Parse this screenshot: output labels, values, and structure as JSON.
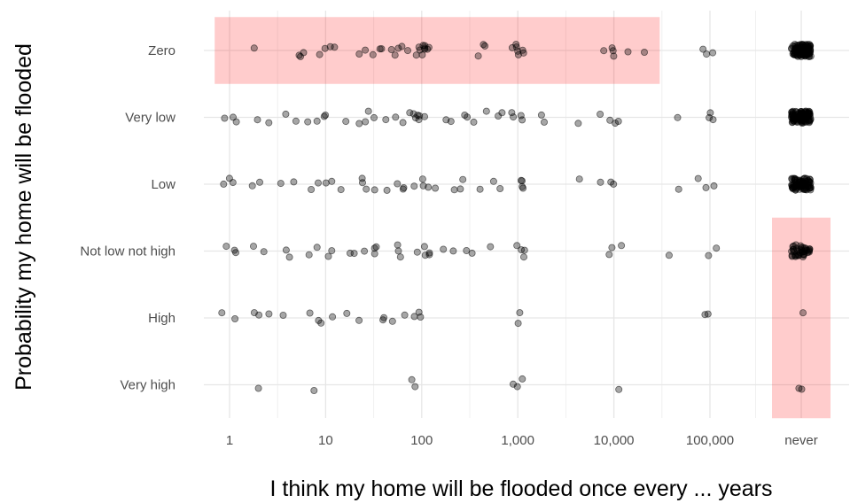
{
  "chart_data": {
    "type": "scatter",
    "title": "",
    "xlabel": "I think my home will be flooded once every ... years",
    "ylabel": "Probability my home will be flooded",
    "x_scale": "log10 with extra 'never' category",
    "x_ticks": [
      1,
      10,
      100,
      1000,
      10000,
      100000,
      "never"
    ],
    "x_tick_labels": [
      "1",
      "10",
      "100",
      "1,000",
      "10,000",
      "100,000",
      "never"
    ],
    "y_categories": [
      "Zero",
      "Very low",
      "Low",
      "Not low not high",
      "High",
      "Very high"
    ],
    "grid": true,
    "point_color": "#000000",
    "point_alpha": 0.35,
    "highlight_color": "#ff0000",
    "highlight_alpha": 0.2,
    "highlights": [
      {
        "x_range": [
          0.7,
          30000
        ],
        "y_category": "Zero"
      },
      {
        "x_range": [
          "never",
          "never"
        ],
        "y_categories": [
          "Not low not high",
          "High",
          "Very high"
        ]
      }
    ],
    "points": [
      {
        "y": "Zero",
        "x": 1.7
      },
      {
        "y": "Zero",
        "x": 5.2
      },
      {
        "y": "Zero",
        "x": 5.5
      },
      {
        "y": "Zero",
        "x": 6
      },
      {
        "y": "Zero",
        "x": 8
      },
      {
        "y": "Zero",
        "x": 9
      },
      {
        "y": "Zero",
        "x": 10
      },
      {
        "y": "Zero",
        "x": 12
      },
      {
        "y": "Zero",
        "x": 25
      },
      {
        "y": "Zero",
        "x": 27
      },
      {
        "y": "Zero",
        "x": 30
      },
      {
        "y": "Zero",
        "x": 35
      },
      {
        "y": "Zero",
        "x": 40
      },
      {
        "y": "Zero",
        "x": 45
      },
      {
        "y": "Zero",
        "x": 50
      },
      {
        "y": "Zero",
        "x": 55
      },
      {
        "y": "Zero",
        "x": 65
      },
      {
        "y": "Zero",
        "x": 75
      },
      {
        "y": "Zero",
        "x": 80
      },
      {
        "y": "Zero",
        "x": 85
      },
      {
        "y": "Zero",
        "x": 90
      },
      {
        "y": "Zero",
        "x": 95
      },
      {
        "y": "Zero",
        "x": 100
      },
      {
        "y": "Zero",
        "x": 100
      },
      {
        "y": "Zero",
        "x": 100
      },
      {
        "y": "Zero",
        "x": 100
      },
      {
        "y": "Zero",
        "x": 110
      },
      {
        "y": "Zero",
        "x": 120
      },
      {
        "y": "Zero",
        "x": 400
      },
      {
        "y": "Zero",
        "x": 450
      },
      {
        "y": "Zero",
        "x": 500
      },
      {
        "y": "Zero",
        "x": 900
      },
      {
        "y": "Zero",
        "x": 950
      },
      {
        "y": "Zero",
        "x": 1000
      },
      {
        "y": "Zero",
        "x": 1000
      },
      {
        "y": "Zero",
        "x": 1000
      },
      {
        "y": "Zero",
        "x": 1100
      },
      {
        "y": "Zero",
        "x": 1200
      },
      {
        "y": "Zero",
        "x": 8000
      },
      {
        "y": "Zero",
        "x": 9000
      },
      {
        "y": "Zero",
        "x": 10000
      },
      {
        "y": "Zero",
        "x": 11000
      },
      {
        "y": "Zero",
        "x": 12000
      },
      {
        "y": "Zero",
        "x": 25000
      },
      {
        "y": "Zero",
        "x": 80000
      },
      {
        "y": "Zero",
        "x": 95000
      },
      {
        "y": "Zero",
        "x": 100000
      },
      {
        "y": "Very low",
        "x": 0.9
      },
      {
        "y": "Very low",
        "x": 1
      },
      {
        "y": "Very low",
        "x": 1.1
      },
      {
        "y": "Very low",
        "x": 1.9
      },
      {
        "y": "Very low",
        "x": 3
      },
      {
        "y": "Very low",
        "x": 4.5
      },
      {
        "y": "Very low",
        "x": 5
      },
      {
        "y": "Very low",
        "x": 7
      },
      {
        "y": "Very low",
        "x": 9
      },
      {
        "y": "Very low",
        "x": 10
      },
      {
        "y": "Very low",
        "x": 12
      },
      {
        "y": "Very low",
        "x": 15
      },
      {
        "y": "Very low",
        "x": 20
      },
      {
        "y": "Very low",
        "x": 25
      },
      {
        "y": "Very low",
        "x": 30
      },
      {
        "y": "Very low",
        "x": 35
      },
      {
        "y": "Very low",
        "x": 40
      },
      {
        "y": "Very low",
        "x": 50
      },
      {
        "y": "Very low",
        "x": 60
      },
      {
        "y": "Very low",
        "x": 70
      },
      {
        "y": "Very low",
        "x": 80
      },
      {
        "y": "Very low",
        "x": 100
      },
      {
        "y": "Very low",
        "x": 100
      },
      {
        "y": "Very low",
        "x": 100
      },
      {
        "y": "Very low",
        "x": 100
      },
      {
        "y": "Very low",
        "x": 100
      },
      {
        "y": "Very low",
        "x": 150
      },
      {
        "y": "Very low",
        "x": 200
      },
      {
        "y": "Very low",
        "x": 250
      },
      {
        "y": "Very low",
        "x": 300
      },
      {
        "y": "Very low",
        "x": 400
      },
      {
        "y": "Very low",
        "x": 500
      },
      {
        "y": "Very low",
        "x": 600
      },
      {
        "y": "Very low",
        "x": 800
      },
      {
        "y": "Very low",
        "x": 1000
      },
      {
        "y": "Very low",
        "x": 1000
      },
      {
        "y": "Very low",
        "x": 1000
      },
      {
        "y": "Very low",
        "x": 1000
      },
      {
        "y": "Very low",
        "x": 1500
      },
      {
        "y": "Very low",
        "x": 2200
      },
      {
        "y": "Very low",
        "x": 4500
      },
      {
        "y": "Very low",
        "x": 8000
      },
      {
        "y": "Very low",
        "x": 10000
      },
      {
        "y": "Very low",
        "x": 10000
      },
      {
        "y": "Very low",
        "x": 12000
      },
      {
        "y": "Very low",
        "x": 50000
      },
      {
        "y": "Very low",
        "x": 90000
      },
      {
        "y": "Very low",
        "x": 100000
      },
      {
        "y": "Very low",
        "x": 110000
      },
      {
        "y": "Low",
        "x": 0.9
      },
      {
        "y": "Low",
        "x": 1
      },
      {
        "y": "Low",
        "x": 1.1
      },
      {
        "y": "Low",
        "x": 1.6
      },
      {
        "y": "Low",
        "x": 2
      },
      {
        "y": "Low",
        "x": 3.5
      },
      {
        "y": "Low",
        "x": 4.5
      },
      {
        "y": "Low",
        "x": 6
      },
      {
        "y": "Low",
        "x": 8
      },
      {
        "y": "Low",
        "x": 10
      },
      {
        "y": "Low",
        "x": 12
      },
      {
        "y": "Low",
        "x": 15
      },
      {
        "y": "Low",
        "x": 20
      },
      {
        "y": "Low",
        "x": 25
      },
      {
        "y": "Low",
        "x": 30
      },
      {
        "y": "Low",
        "x": 35
      },
      {
        "y": "Low",
        "x": 40
      },
      {
        "y": "Low",
        "x": 50
      },
      {
        "y": "Low",
        "x": 60
      },
      {
        "y": "Low",
        "x": 70
      },
      {
        "y": "Low",
        "x": 100
      },
      {
        "y": "Low",
        "x": 100
      },
      {
        "y": "Low",
        "x": 100
      },
      {
        "y": "Low",
        "x": 100
      },
      {
        "y": "Low",
        "x": 150
      },
      {
        "y": "Low",
        "x": 200
      },
      {
        "y": "Low",
        "x": 250
      },
      {
        "y": "Low",
        "x": 300
      },
      {
        "y": "Low",
        "x": 450
      },
      {
        "y": "Low",
        "x": 500
      },
      {
        "y": "Low",
        "x": 700
      },
      {
        "y": "Low",
        "x": 1000
      },
      {
        "y": "Low",
        "x": 1000
      },
      {
        "y": "Low",
        "x": 1000
      },
      {
        "y": "Low",
        "x": 1000
      },
      {
        "y": "Low",
        "x": 5000
      },
      {
        "y": "Low",
        "x": 8000
      },
      {
        "y": "Low",
        "x": 10000
      },
      {
        "y": "Low",
        "x": 11000
      },
      {
        "y": "Low",
        "x": 45000
      },
      {
        "y": "Low",
        "x": 85000
      },
      {
        "y": "Low",
        "x": 100000
      },
      {
        "y": "Low",
        "x": 110000
      },
      {
        "y": "Not low not high",
        "x": 0.9
      },
      {
        "y": "Not low not high",
        "x": 1
      },
      {
        "y": "Not low not high",
        "x": 1.1
      },
      {
        "y": "Not low not high",
        "x": 1.9
      },
      {
        "y": "Not low not high",
        "x": 2.2
      },
      {
        "y": "Not low not high",
        "x": 3.5
      },
      {
        "y": "Not low not high",
        "x": 5
      },
      {
        "y": "Not low not high",
        "x": 6
      },
      {
        "y": "Not low not high",
        "x": 9
      },
      {
        "y": "Not low not high",
        "x": 10
      },
      {
        "y": "Not low not high",
        "x": 12
      },
      {
        "y": "Not low not high",
        "x": 15
      },
      {
        "y": "Not low not high",
        "x": 20
      },
      {
        "y": "Not low not high",
        "x": 25
      },
      {
        "y": "Not low not high",
        "x": 30
      },
      {
        "y": "Not low not high",
        "x": 35
      },
      {
        "y": "Not low not high",
        "x": 40
      },
      {
        "y": "Not low not high",
        "x": 50
      },
      {
        "y": "Not low not high",
        "x": 60
      },
      {
        "y": "Not low not high",
        "x": 70
      },
      {
        "y": "Not low not high",
        "x": 80
      },
      {
        "y": "Not low not high",
        "x": 100
      },
      {
        "y": "Not low not high",
        "x": 100
      },
      {
        "y": "Not low not high",
        "x": 100
      },
      {
        "y": "Not low not high",
        "x": 100
      },
      {
        "y": "Not low not high",
        "x": 150
      },
      {
        "y": "Not low not high",
        "x": 200
      },
      {
        "y": "Not low not high",
        "x": 250
      },
      {
        "y": "Not low not high",
        "x": 400
      },
      {
        "y": "Not low not high",
        "x": 600
      },
      {
        "y": "Not low not high",
        "x": 900
      },
      {
        "y": "Not low not high",
        "x": 1000
      },
      {
        "y": "Not low not high",
        "x": 1000
      },
      {
        "y": "Not low not high",
        "x": 1100
      },
      {
        "y": "Not low not high",
        "x": 8000
      },
      {
        "y": "Not low not high",
        "x": 10000
      },
      {
        "y": "Not low not high",
        "x": 11000
      },
      {
        "y": "Not low not high",
        "x": 45000
      },
      {
        "y": "Not low not high",
        "x": 100000
      },
      {
        "y": "Not low not high",
        "x": 110000
      },
      {
        "y": "High",
        "x": 0.95
      },
      {
        "y": "High",
        "x": 1.1
      },
      {
        "y": "High",
        "x": 1.7
      },
      {
        "y": "High",
        "x": 2.2
      },
      {
        "y": "High",
        "x": 3
      },
      {
        "y": "High",
        "x": 4.2
      },
      {
        "y": "High",
        "x": 6
      },
      {
        "y": "High",
        "x": 9
      },
      {
        "y": "High",
        "x": 10
      },
      {
        "y": "High",
        "x": 11
      },
      {
        "y": "High",
        "x": 20
      },
      {
        "y": "High",
        "x": 25
      },
      {
        "y": "High",
        "x": 35
      },
      {
        "y": "High",
        "x": 45
      },
      {
        "y": "High",
        "x": 55
      },
      {
        "y": "High",
        "x": 80
      },
      {
        "y": "High",
        "x": 90
      },
      {
        "y": "High",
        "x": 100
      },
      {
        "y": "High",
        "x": 110
      },
      {
        "y": "High",
        "x": 900
      },
      {
        "y": "High",
        "x": 1000
      },
      {
        "y": "High",
        "x": 85000
      },
      {
        "y": "High",
        "x": 105000
      },
      {
        "y": "Very high",
        "x": 1.7
      },
      {
        "y": "Very high",
        "x": 8
      },
      {
        "y": "Very high",
        "x": 85
      },
      {
        "y": "Very high",
        "x": 90
      },
      {
        "y": "Very high",
        "x": 900
      },
      {
        "y": "Very high",
        "x": 1000
      },
      {
        "y": "Very high",
        "x": 1100
      },
      {
        "y": "Very high",
        "x": 11000
      },
      {
        "y": "Zero",
        "x": "never",
        "n": 100
      },
      {
        "y": "Very low",
        "x": "never",
        "n": 100
      },
      {
        "y": "Low",
        "x": "never",
        "n": 80
      },
      {
        "y": "Not low not high",
        "x": "never",
        "n": 40
      },
      {
        "y": "High",
        "x": "never",
        "n": 1
      },
      {
        "y": "Very high",
        "x": "never",
        "n": 2
      }
    ]
  }
}
